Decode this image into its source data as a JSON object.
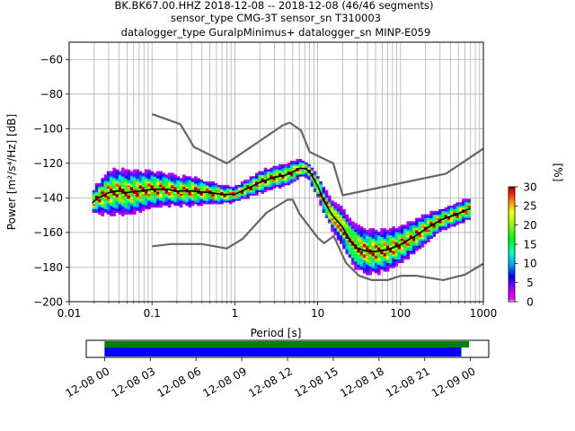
{
  "header": {
    "line1": "BK.BK67.00.HHZ   2018-12-08 -- 2018-12-08  (46/46 segments)",
    "line2": "sensor_type CMG-3T sensor_sn T310003",
    "line3": "datalogger_type GuralpMinimus+ datalogger_sn MINP-E059"
  },
  "colors": {
    "noise_model": "#666666",
    "mode": "#000000",
    "mean_line": "#000000",
    "colormap": [
      "#ffffff",
      "#ff00ff",
      "#8000ff",
      "#0000ff",
      "#00c0ff",
      "#00ffc0",
      "#00ff00",
      "#80ff00",
      "#ffff00",
      "#ff8000",
      "#ff0000",
      "#800000"
    ],
    "timeline_data": "#008000",
    "timeline_segments": "#0000ff"
  },
  "chart_data": [
    {
      "type": "heatmap",
      "ylabel": "Power [m²/s⁴/Hz] [dB]",
      "xlabel": "Period [s]",
      "x_scale": "log",
      "xlim": [
        0.01,
        1000
      ],
      "ylim": [
        -200,
        -50
      ],
      "grid": true,
      "x_ticks": [
        {
          "value": 0.01,
          "label": "0.01"
        },
        {
          "value": 0.1,
          "label": "0.1"
        },
        {
          "value": 1,
          "label": "1"
        },
        {
          "value": 10,
          "label": "10"
        },
        {
          "value": 100,
          "label": "100"
        },
        {
          "value": 1000,
          "label": "1000"
        }
      ],
      "y_ticks": [
        {
          "value": -60,
          "label": "−60"
        },
        {
          "value": -80,
          "label": "−80"
        },
        {
          "value": -100,
          "label": "−100"
        },
        {
          "value": -120,
          "label": "−120"
        },
        {
          "value": -140,
          "label": "−140"
        },
        {
          "value": -160,
          "label": "−160"
        },
        {
          "value": -180,
          "label": "−180"
        },
        {
          "value": -200,
          "label": "−200"
        }
      ],
      "colorbar": {
        "label": "[%]",
        "range": [
          0,
          30
        ],
        "ticks": [
          {
            "value": 0,
            "label": "0"
          },
          {
            "value": 5,
            "label": "5"
          },
          {
            "value": 10,
            "label": "10"
          },
          {
            "value": 15,
            "label": "15"
          },
          {
            "value": 20,
            "label": "20"
          },
          {
            "value": 25,
            "label": "25"
          },
          {
            "value": 30,
            "label": "30"
          }
        ]
      },
      "mode_curve": [
        [
          0.019,
          -143
        ],
        [
          0.022,
          -140
        ],
        [
          0.025,
          -139
        ],
        [
          0.03,
          -137
        ],
        [
          0.04,
          -136
        ],
        [
          0.05,
          -137
        ],
        [
          0.07,
          -136
        ],
        [
          0.1,
          -135
        ],
        [
          0.15,
          -135
        ],
        [
          0.2,
          -136
        ],
        [
          0.3,
          -136
        ],
        [
          0.5,
          -137
        ],
        [
          0.7,
          -138
        ],
        [
          1,
          -138
        ],
        [
          1.5,
          -134
        ],
        [
          2,
          -131
        ],
        [
          3,
          -128
        ],
        [
          4,
          -127
        ],
        [
          5,
          -125
        ],
        [
          6,
          -123
        ],
        [
          7,
          -123
        ],
        [
          8,
          -125
        ],
        [
          10,
          -133
        ],
        [
          12,
          -142
        ],
        [
          15,
          -150
        ],
        [
          20,
          -157
        ],
        [
          25,
          -165
        ],
        [
          30,
          -169
        ],
        [
          40,
          -171
        ],
        [
          50,
          -171
        ],
        [
          70,
          -170
        ],
        [
          100,
          -167
        ],
        [
          150,
          -162
        ],
        [
          200,
          -158
        ],
        [
          300,
          -153
        ],
        [
          500,
          -149
        ],
        [
          700,
          -146
        ]
      ],
      "spread_curve": [
        [
          0.019,
          3
        ],
        [
          0.03,
          6
        ],
        [
          0.05,
          6
        ],
        [
          0.1,
          5
        ],
        [
          0.2,
          4
        ],
        [
          0.3,
          4
        ],
        [
          0.5,
          3
        ],
        [
          1,
          2
        ],
        [
          2,
          3
        ],
        [
          5,
          3
        ],
        [
          7,
          2
        ],
        [
          10,
          3
        ],
        [
          15,
          4
        ],
        [
          20,
          5
        ],
        [
          30,
          6
        ],
        [
          50,
          6
        ],
        [
          100,
          5
        ],
        [
          200,
          4
        ],
        [
          300,
          3
        ],
        [
          700,
          3
        ]
      ],
      "noise_models": [
        {
          "points": [
            [
              0.1,
              -91.5
            ],
            [
              0.22,
              -97.4
            ],
            [
              0.32,
              -110.5
            ],
            [
              0.8,
              -120
            ],
            [
              3.8,
              -98
            ],
            [
              4.6,
              -96.5
            ],
            [
              6.3,
              -101
            ],
            [
              8,
              -113.5
            ],
            [
              15.4,
              -120
            ],
            [
              20,
              -138.5
            ],
            [
              354,
              -126
            ],
            [
              1000,
              -111.5
            ]
          ]
        },
        {
          "points": [
            [
              0.1,
              -168
            ],
            [
              0.17,
              -166.7
            ],
            [
              0.4,
              -166.7
            ],
            [
              0.8,
              -169.2
            ],
            [
              1.24,
              -163.7
            ],
            [
              2.4,
              -148.6
            ],
            [
              4.3,
              -141.1
            ],
            [
              5,
              -141
            ],
            [
              6,
              -149
            ],
            [
              10,
              -163
            ],
            [
              12,
              -166.2
            ],
            [
              15.6,
              -162
            ],
            [
              21.9,
              -177.5
            ],
            [
              31.6,
              -185
            ],
            [
              45,
              -187.5
            ],
            [
              70,
              -187.5
            ],
            [
              101,
              -185
            ],
            [
              154,
              -185
            ],
            [
              328,
              -187.5
            ],
            [
              600,
              -184.4
            ],
            [
              1000,
              -178
            ]
          ]
        }
      ]
    },
    {
      "type": "bar",
      "x_ticks": [
        "12-08 00",
        "12-08 03",
        "12-08 06",
        "12-08 09",
        "12-08 12",
        "12-08 15",
        "12-08 18",
        "12-08 21",
        "12-09 00"
      ],
      "x_tick_hours": [
        0,
        3,
        6,
        9,
        12,
        15,
        18,
        21,
        24
      ],
      "xlim_hours": [
        -1.2,
        25.2
      ],
      "bars": [
        {
          "name": "data",
          "start_hour": 0,
          "end_hour": 23.9
        },
        {
          "name": "segments",
          "start_hour": 0,
          "end_hour": 23.4
        }
      ]
    }
  ]
}
